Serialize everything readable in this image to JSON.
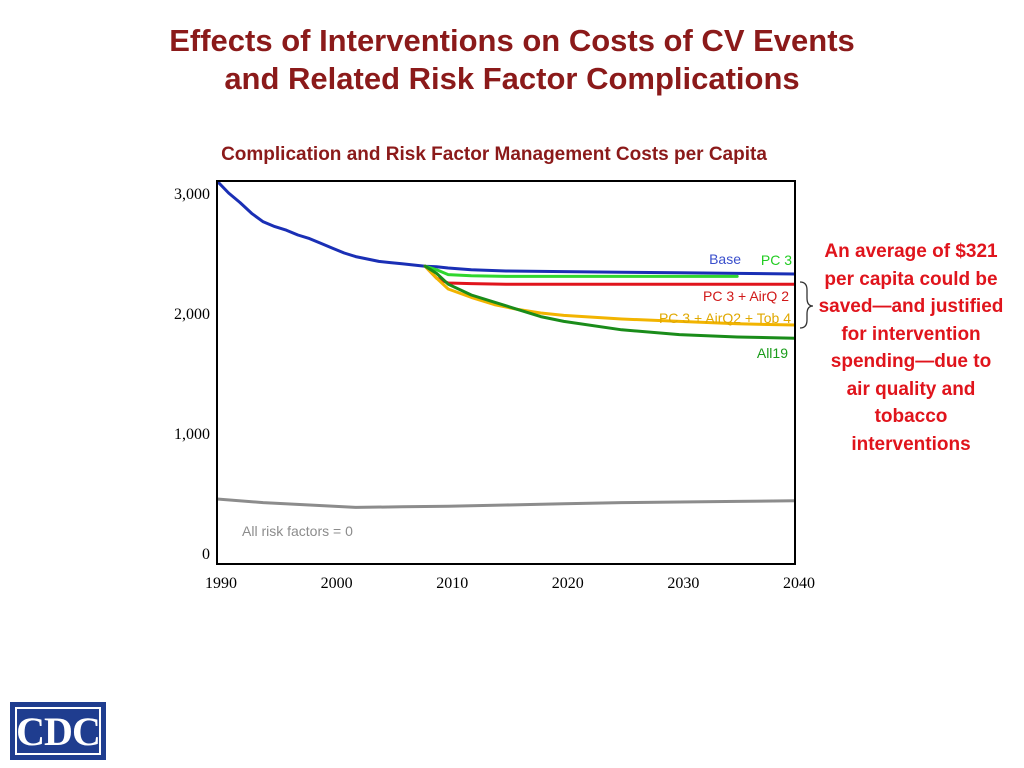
{
  "slide": {
    "title_line1": "Effects of Interventions on Costs of CV Events",
    "title_line2": "and Related Risk Factor Complications"
  },
  "callout": {
    "text": "An average of $321 per capita could be saved—and justified for intervention spending—due to air quality and tobacco interventions"
  },
  "logo": {
    "text": "CDC"
  },
  "colors": {
    "title": "#8b1a1a",
    "callout": "#e0141c"
  },
  "chart_data": {
    "type": "line",
    "title": "Complication and Risk Factor Management Costs per Capita",
    "xlabel": "",
    "ylabel": "",
    "xlim": [
      1990,
      2040
    ],
    "ylim": [
      0,
      3100
    ],
    "xticks": [
      1990,
      2000,
      2010,
      2020,
      2030,
      2040
    ],
    "xtick_labels": [
      "1990",
      "2000",
      "2010",
      "2020",
      "2030",
      "2040"
    ],
    "yticks": [
      0,
      1000,
      2000,
      3000
    ],
    "ytick_labels": [
      "0",
      "1,000",
      "2,000",
      "3,000"
    ],
    "grid": false,
    "legend": "inline labels",
    "series": [
      {
        "name": "Base",
        "color": "#1a2fb5",
        "label_color": "#3a4fcc",
        "x": [
          1990,
          1991,
          1992,
          1993,
          1994,
          1995,
          1996,
          1997,
          1998,
          1999,
          2000,
          2001,
          2002,
          2003,
          2004,
          2005,
          2006,
          2007,
          2008,
          2009,
          2010,
          2012,
          2015,
          2020,
          2025,
          2030,
          2035,
          2040
        ],
        "y": [
          3100,
          3000,
          2920,
          2830,
          2760,
          2720,
          2690,
          2650,
          2620,
          2580,
          2540,
          2500,
          2470,
          2450,
          2430,
          2420,
          2410,
          2400,
          2390,
          2385,
          2375,
          2360,
          2350,
          2345,
          2340,
          2335,
          2330,
          2325
        ]
      },
      {
        "name": "PC 3",
        "color": "#2fd62f",
        "label_color": "#22cc22",
        "x": [
          2008,
          2009,
          2010,
          2012,
          2015,
          2020,
          2025,
          2030,
          2035
        ],
        "y": [
          2390,
          2360,
          2320,
          2310,
          2305,
          2305,
          2305,
          2305,
          2305
        ]
      },
      {
        "name": "PC 3 + AirQ 2",
        "color": "#e0141c",
        "label_color": "#d01818",
        "x": [
          2008,
          2009,
          2010,
          2012,
          2015,
          2020,
          2025,
          2030,
          2035,
          2040
        ],
        "y": [
          2390,
          2290,
          2250,
          2245,
          2240,
          2240,
          2240,
          2240,
          2240,
          2240
        ]
      },
      {
        "name": "PC 3 + AirQ2 + Tob 4",
        "color": "#f2b400",
        "label_color": "#e0a800",
        "x": [
          2008,
          2009,
          2010,
          2012,
          2014,
          2016,
          2018,
          2020,
          2025,
          2030,
          2035,
          2040
        ],
        "y": [
          2390,
          2290,
          2200,
          2130,
          2070,
          2030,
          2000,
          1980,
          1950,
          1930,
          1910,
          1900
        ]
      },
      {
        "name": "All19",
        "color": "#1a8c1a",
        "label_color": "#1a9c1a",
        "x": [
          2008,
          2009,
          2010,
          2012,
          2014,
          2016,
          2018,
          2020,
          2025,
          2030,
          2035,
          2040
        ],
        "y": [
          2390,
          2330,
          2240,
          2150,
          2090,
          2030,
          1970,
          1930,
          1860,
          1820,
          1800,
          1790
        ]
      },
      {
        "name": "All risk factors = 0",
        "color": "#8c8c8c",
        "label_color": "#8c8c8c",
        "x": [
          1990,
          1994,
          1998,
          2002,
          2006,
          2010,
          2015,
          2020,
          2025,
          2030,
          2035,
          2040
        ],
        "y": [
          450,
          420,
          400,
          380,
          385,
          390,
          400,
          410,
          420,
          425,
          430,
          435
        ]
      }
    ]
  }
}
